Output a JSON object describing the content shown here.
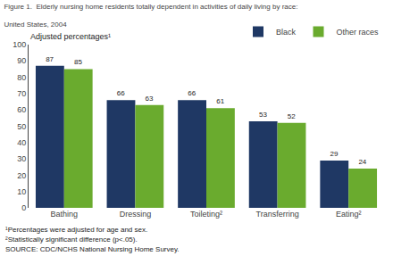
{
  "chart_data": {
    "type": "bar",
    "title": "Figure 1.  Elderly nursing home residents totally dependent in activities of daily living by race:",
    "subtitle": "United States, 2004",
    "ylabel": "Adjusted percentages¹",
    "categories": [
      "Bathing",
      "Dressing",
      "Toileting²",
      "Transferring",
      "Eating²"
    ],
    "series": [
      {
        "name": "Black",
        "color": "#1F3864",
        "values": [
          87,
          66,
          66,
          53,
          29
        ]
      },
      {
        "name": "Other races",
        "color": "#6AAB2E",
        "values": [
          85,
          63,
          61,
          52,
          24
        ]
      }
    ],
    "ylim": [
      0,
      100
    ],
    "yticks": [
      0,
      10,
      20,
      30,
      40,
      50,
      60,
      70,
      80,
      90,
      100
    ],
    "grid": false,
    "legend": "upper right",
    "data_labels": true,
    "annotations": [
      "¹Percentages were adjusted for age and sex.",
      "²Statistically significant difference (p<.05).",
      "SOURCE: CDC/NCHS National Nursing Home Survey."
    ]
  }
}
